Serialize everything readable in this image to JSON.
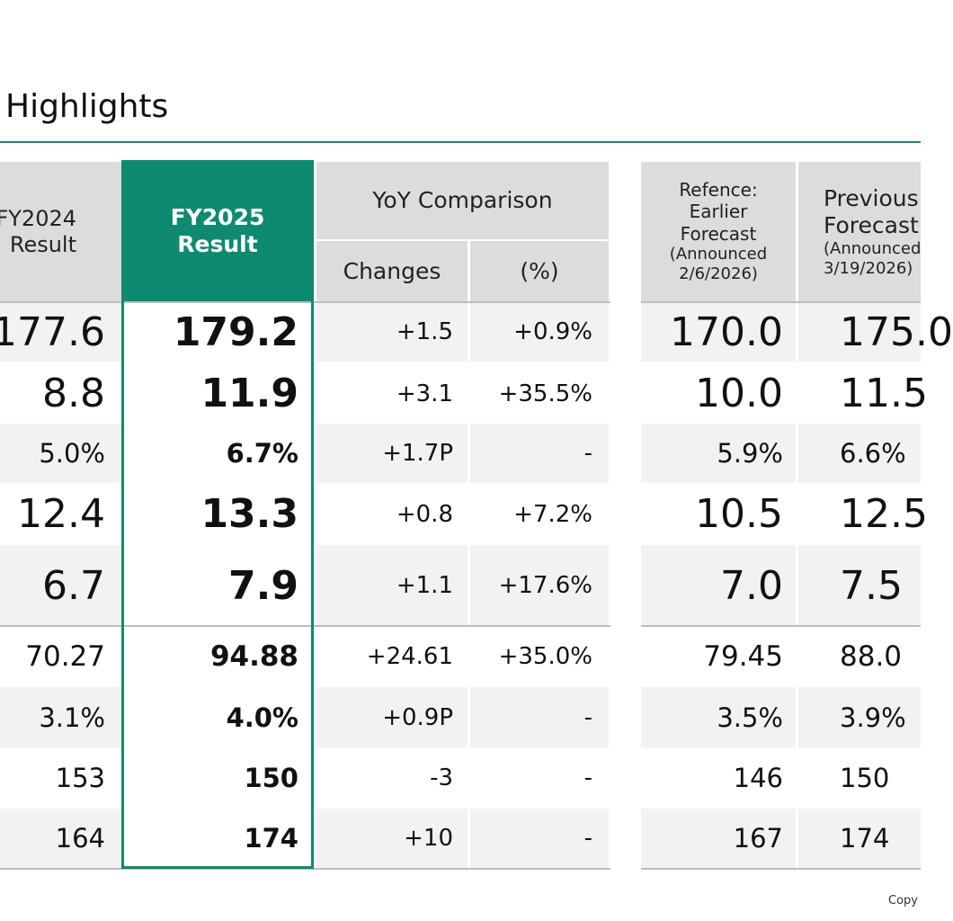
{
  "page_title": "Highlights",
  "copyright": "Copy",
  "headers": {
    "fy2024": [
      "FY2024",
      "Result"
    ],
    "fy2025": [
      "FY2025",
      "Result"
    ],
    "yoy": "YoY Comparison",
    "changes": "Changes",
    "pct": "(%)",
    "earlier": [
      "Refence:",
      "Earlier",
      "Forecast",
      "(Announced",
      "2/6/2026)"
    ],
    "previous": [
      "Previous",
      "Forecast",
      "(Announced",
      "3/19/2026)"
    ]
  },
  "rows": [
    {
      "fy2024": "177.6",
      "fy2025": "179.2",
      "change": "+1.5",
      "pct": "+0.9%",
      "earlier": "170.0",
      "previous": "175.0"
    },
    {
      "fy2024": "8.8",
      "fy2025": "11.9",
      "change": "+3.1",
      "pct": "+35.5%",
      "earlier": "10.0",
      "previous": "11.5"
    },
    {
      "fy2024": "5.0%",
      "fy2025": "6.7%",
      "change": "+1.7P",
      "pct": "-",
      "earlier": "5.9%",
      "previous": "6.6%"
    },
    {
      "fy2024": "12.4",
      "fy2025": "13.3",
      "change": "+0.8",
      "pct": "+7.2%",
      "earlier": "10.5",
      "previous": "12.5"
    },
    {
      "fy2024": "6.7",
      "fy2025": "7.9",
      "change": "+1.1",
      "pct": "+17.6%",
      "earlier": "7.0",
      "previous": "7.5"
    },
    {
      "fy2024": "70.27",
      "fy2025": "94.88",
      "change": "+24.61",
      "pct": "+35.0%",
      "earlier": "79.45",
      "previous": "88.0"
    },
    {
      "fy2024": "3.1%",
      "fy2025": "4.0%",
      "change": "+0.9P",
      "pct": "-",
      "earlier": "3.5%",
      "previous": "3.9%"
    },
    {
      "fy2024": "153",
      "fy2025": "150",
      "change": "-3",
      "pct": "-",
      "earlier": "146",
      "previous": "150"
    },
    {
      "fy2024": "164",
      "fy2025": "174",
      "change": "+10",
      "pct": "-",
      "earlier": "167",
      "previous": "174"
    }
  ],
  "colors": {
    "accent": "#0e8a70",
    "header_bg": "#dcdcdc",
    "stripe_bg": "#f2f2f2"
  }
}
